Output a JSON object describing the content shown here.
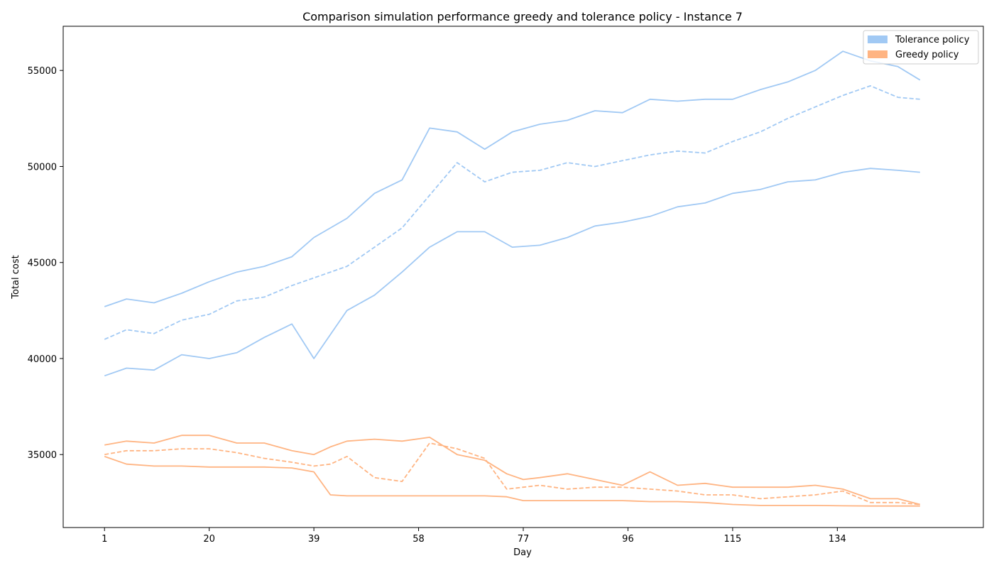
{
  "chart_data": {
    "type": "line",
    "title": "Comparison simulation performance greedy and tolerance policy - Instance 7",
    "xlabel": "Day",
    "ylabel": "Total cost",
    "xlim": [
      -6.5,
      160.5
    ],
    "ylim": [
      31200,
      57300
    ],
    "xticks": [
      1,
      20,
      39,
      58,
      77,
      96,
      115,
      134
    ],
    "yticks": [
      35000,
      40000,
      45000,
      50000,
      55000
    ],
    "legend_position": "top-right",
    "legend": [
      {
        "label": "Tolerance policy",
        "color": "#a1c9f4"
      },
      {
        "label": "Greedy policy",
        "color": "#ffb482"
      }
    ],
    "series": [
      {
        "name": "Tolerance policy",
        "color": "#a1c9f4",
        "mean_style": "dashed",
        "x": [
          1,
          5,
          10,
          15,
          20,
          25,
          30,
          35,
          39,
          45,
          50,
          55,
          60,
          65,
          70,
          75,
          80,
          85,
          90,
          95,
          100,
          105,
          110,
          115,
          120,
          125,
          130,
          135,
          140,
          145,
          149
        ],
        "mean": [
          41000,
          41500,
          41300,
          42000,
          42300,
          43000,
          43200,
          43800,
          44200,
          44800,
          45800,
          46800,
          48500,
          50200,
          49200,
          49700,
          49800,
          50200,
          50000,
          50300,
          50600,
          50800,
          50700,
          51300,
          51800,
          52500,
          53100,
          53700,
          54200,
          53600,
          53500
        ],
        "upper": [
          42700,
          43100,
          42900,
          43400,
          44000,
          44500,
          44800,
          45300,
          46300,
          47300,
          48600,
          49300,
          52000,
          51800,
          50900,
          51800,
          52200,
          52400,
          52900,
          52800,
          53500,
          53400,
          53500,
          53500,
          54000,
          54400,
          55000,
          56000,
          55500,
          55200,
          54500
        ],
        "lower": [
          39100,
          39500,
          39400,
          40200,
          40000,
          40300,
          41100,
          41800,
          40000,
          42500,
          43300,
          44500,
          45800,
          46600,
          46600,
          45800,
          45900,
          46300,
          46900,
          47100,
          47400,
          47900,
          48100,
          48600,
          48800,
          49200,
          49300,
          49700,
          49900,
          49800,
          49700
        ]
      },
      {
        "name": "Greedy policy",
        "color": "#ffb482",
        "mean_style": "dashed",
        "x": [
          1,
          5,
          10,
          15,
          20,
          25,
          30,
          35,
          39,
          42,
          45,
          50,
          55,
          60,
          65,
          70,
          74,
          77,
          80,
          85,
          90,
          95,
          100,
          105,
          110,
          115,
          120,
          125,
          130,
          135,
          140,
          145,
          149
        ],
        "mean": [
          35000,
          35200,
          35200,
          35300,
          35300,
          35100,
          34800,
          34600,
          34400,
          34500,
          34900,
          33800,
          33600,
          35600,
          35300,
          34800,
          33200,
          33300,
          33400,
          33200,
          33300,
          33300,
          33200,
          33100,
          32900,
          32900,
          32700,
          32800,
          32900,
          33100,
          32500,
          32500,
          32400
        ],
        "upper": [
          35500,
          35700,
          35600,
          36000,
          36000,
          35600,
          35600,
          35200,
          35000,
          35400,
          35700,
          35800,
          35700,
          35900,
          35000,
          34700,
          34000,
          33700,
          33800,
          34000,
          33700,
          33400,
          34100,
          33400,
          33500,
          33300,
          33300,
          33300,
          33400,
          33200,
          32700,
          32700,
          32400
        ],
        "lower": [
          34900,
          34500,
          34400,
          34400,
          34350,
          34350,
          34350,
          34300,
          34100,
          32900,
          32850,
          32850,
          32850,
          32850,
          32850,
          32850,
          32800,
          32600,
          32600,
          32600,
          32600,
          32600,
          32550,
          32550,
          32500,
          32400,
          32350,
          32350,
          32350,
          32330,
          32320,
          32320,
          32320
        ]
      }
    ]
  }
}
